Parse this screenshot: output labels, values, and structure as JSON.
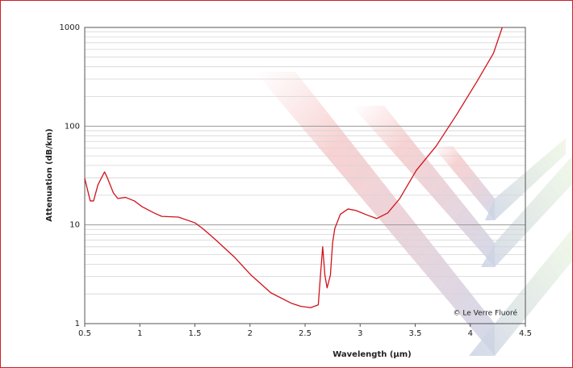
{
  "chart_data": {
    "type": "line",
    "x_label": "Wavelength (µm)",
    "y_label": "Attenuation (dB/km)",
    "annotation": "© Le Verre Fluoré",
    "y_log": true,
    "grid": true,
    "minor_grid": true,
    "xlim": [
      0.5,
      4.5
    ],
    "xticks": [
      0.5,
      1,
      1.5,
      2,
      2.5,
      3,
      3.5,
      4,
      4.5
    ],
    "ylim": [
      1,
      1000
    ],
    "yticks": [
      1,
      10,
      100,
      1000
    ],
    "series": [
      {
        "color": "#d0121b",
        "x": [
          0.5,
          0.55,
          0.58,
          0.62,
          0.68,
          0.705,
          0.76,
          0.8,
          0.87,
          0.95,
          1.02,
          1.13,
          1.2,
          1.35,
          1.5,
          1.57,
          1.68,
          1.86,
          2.01,
          2.19,
          2.38,
          2.46,
          2.55,
          2.62,
          2.64,
          2.66,
          2.68,
          2.7,
          2.73,
          2.75,
          2.77,
          2.82,
          2.89,
          2.96,
          3.07,
          3.15,
          3.25,
          3.36,
          3.51,
          3.69,
          3.88,
          4.06,
          4.21,
          4.29
        ],
        "values": [
          29.6,
          17.5,
          17.5,
          25.5,
          34.4,
          30,
          21.1,
          18.5,
          19,
          17.5,
          15.3,
          13.2,
          12.2,
          12,
          10.5,
          9.2,
          7.2,
          4.7,
          3.1,
          2.05,
          1.6,
          1.5,
          1.45,
          1.55,
          3.1,
          6.0,
          3.1,
          2.3,
          3.1,
          6.6,
          9.2,
          12.8,
          14.5,
          14,
          12.5,
          11.6,
          13.2,
          18.5,
          35.7,
          62.8,
          133,
          283,
          547,
          1000
        ]
      }
    ]
  }
}
